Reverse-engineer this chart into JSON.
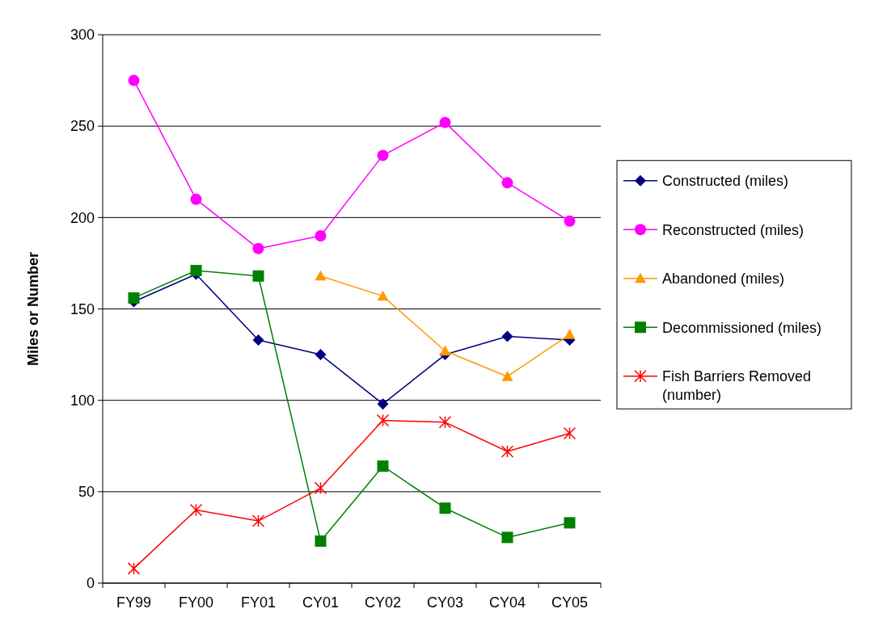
{
  "chart_data": {
    "type": "line",
    "ylabel": "Miles or Number",
    "categories": [
      "FY99",
      "FY00",
      "FY01",
      "CY01",
      "CY02",
      "CY03",
      "CY04",
      "CY05"
    ],
    "ylim": [
      0,
      300
    ],
    "yticks": [
      0,
      50,
      100,
      150,
      200,
      250,
      300
    ],
    "grid": "y",
    "legend": "right",
    "series": [
      {
        "name": "Constructed (miles)",
        "color": "#000080",
        "marker": "diamond",
        "values": [
          154,
          169,
          133,
          125,
          98,
          125,
          135,
          133
        ]
      },
      {
        "name": "Reconstructed (miles)",
        "color": "#ff00ff",
        "marker": "circle",
        "values": [
          275,
          210,
          183,
          190,
          234,
          252,
          219,
          198
        ]
      },
      {
        "name": "Abandoned (miles)",
        "color": "#ff9900",
        "marker": "triangle",
        "values": [
          null,
          null,
          null,
          168,
          157,
          127,
          113,
          136
        ]
      },
      {
        "name": "Decommissioned (miles)",
        "color": "#008000",
        "marker": "square",
        "values": [
          156,
          171,
          168,
          23,
          64,
          41,
          25,
          33
        ]
      },
      {
        "name": "Fish Barriers Removed (number)",
        "color": "#ff0000",
        "marker": "cross",
        "values": [
          8,
          40,
          34,
          52,
          89,
          88,
          72,
          82
        ]
      }
    ]
  }
}
